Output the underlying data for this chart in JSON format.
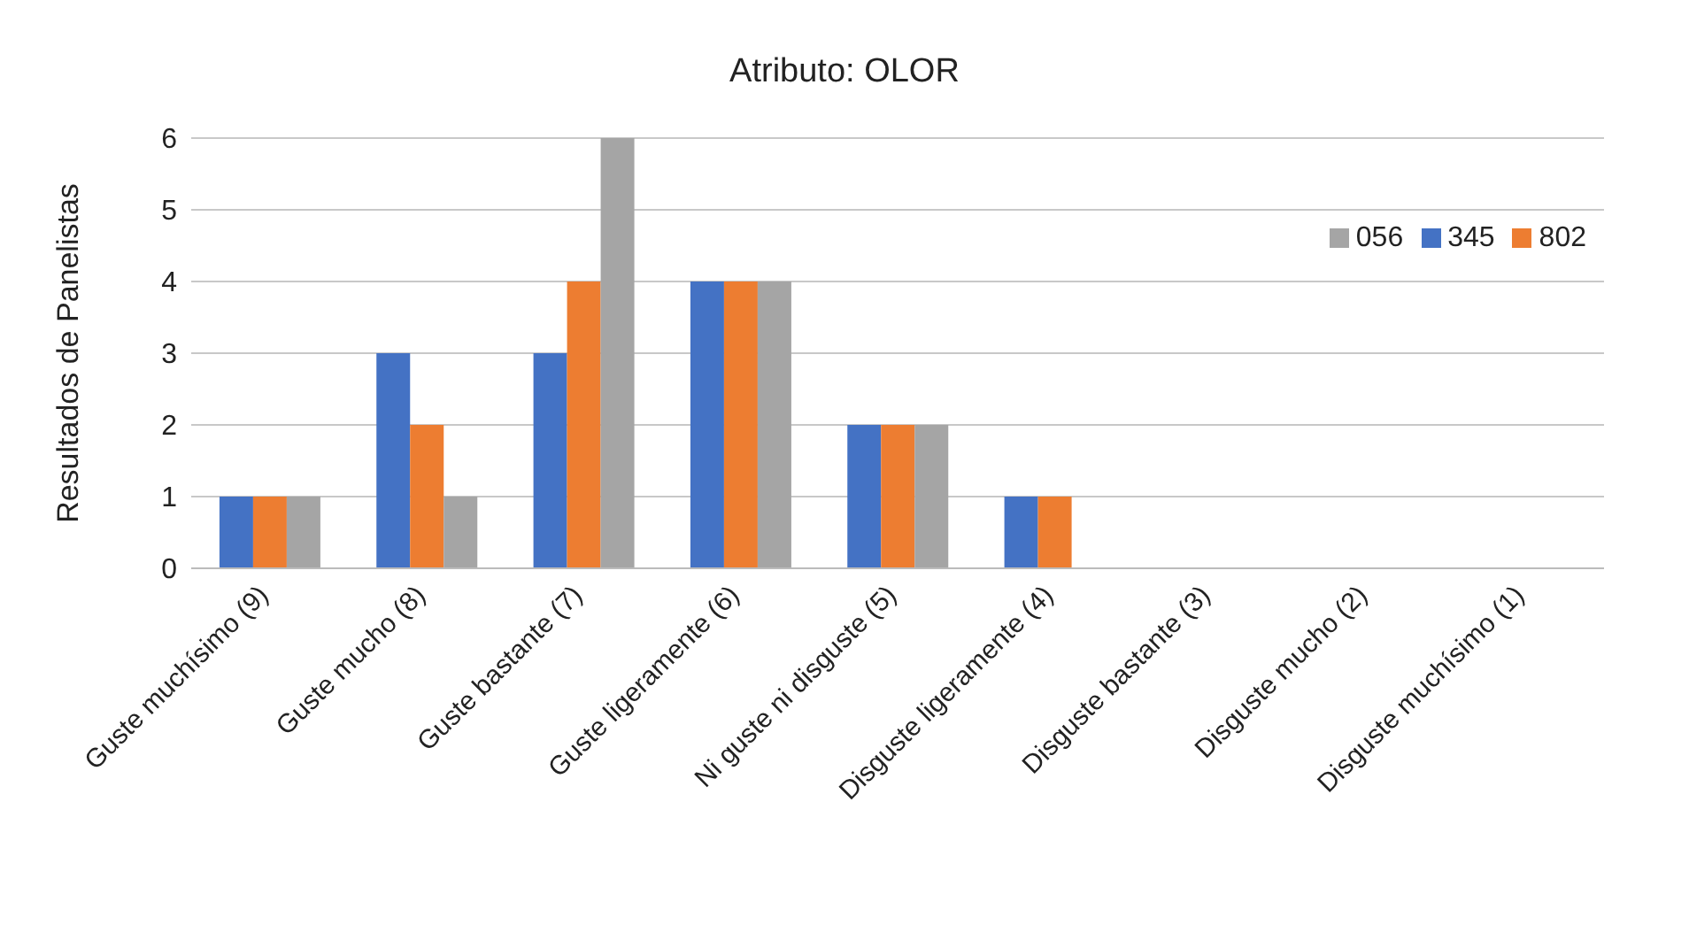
{
  "chart_data": {
    "type": "bar",
    "title": "Atributo: OLOR",
    "ylabel": "Resultados de Panelistas",
    "categories": [
      "Guste muchísimo (9)",
      "Guste mucho (8)",
      "Guste bastante (7)",
      "Guste ligeramente (6)",
      "Ni guste ni disguste (5)",
      "Disguste ligeramente (4)",
      "Disguste bastante (3)",
      "Disguste mucho (2)",
      "Disguste muchísimo (1)"
    ],
    "series": [
      {
        "name": "345",
        "color": "#4472c4",
        "values": [
          1,
          3,
          3,
          4,
          2,
          1,
          0,
          0,
          0
        ]
      },
      {
        "name": "802",
        "color": "#ed7d31",
        "values": [
          1,
          2,
          4,
          4,
          2,
          1,
          0,
          0,
          0
        ]
      },
      {
        "name": "056",
        "color": "#a5a5a5",
        "values": [
          1,
          1,
          6,
          4,
          2,
          0,
          0,
          0,
          0
        ]
      }
    ],
    "ylim": [
      0,
      6
    ],
    "yticks": [
      0,
      1,
      2,
      3,
      4,
      5,
      6
    ],
    "grid": "y",
    "legend": "top right"
  }
}
